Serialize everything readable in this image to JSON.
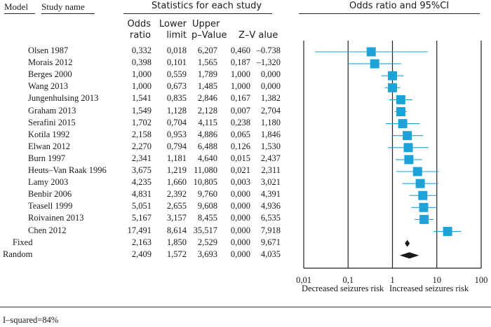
{
  "headers": {
    "model": "Model",
    "study_name": "Study name",
    "stats": "Statistics for each study",
    "plot": "Odds ratio and 95%CI",
    "col_or_1": "Odds",
    "col_or_2": "ratio",
    "col_low_1": "Lower",
    "col_low_2": "limit",
    "col_up_1": "Upper",
    "col_p_2": "p–Value",
    "col_z_2": "Z–V alue"
  },
  "footer": {
    "decreased": "Decreased seizures risk",
    "increased": "Increased seizures risk",
    "isq": "I–squared=84%"
  },
  "chart_data": {
    "type": "forest",
    "x_scale": "log",
    "xlim": [
      0.01,
      100
    ],
    "x_ticks": [
      "0,01",
      "0,1",
      "1",
      "10",
      "100"
    ],
    "x_tick_values": [
      0.01,
      0.1,
      1,
      10,
      100
    ],
    "rows": [
      {
        "name": "Olsen 1987",
        "or": "0,332",
        "lower": "0,018",
        "upper": "6,207",
        "p": "0,460",
        "z": "–0.738",
        "or_v": 0.332,
        "lo_v": 0.018,
        "up_v": 6.207
      },
      {
        "name": "Morais 2012",
        "or": "0,398",
        "lower": "0,101",
        "upper": "1,565",
        "p": "0,187",
        "z": "–1,320",
        "or_v": 0.398,
        "lo_v": 0.101,
        "up_v": 1.565
      },
      {
        "name": "Berges 2000",
        "or": "1,000",
        "lower": "0,559",
        "upper": "1,789",
        "p": "1,000",
        "z": "0,000",
        "or_v": 1.0,
        "lo_v": 0.559,
        "up_v": 1.789
      },
      {
        "name": "Wang 2013",
        "or": "1,000",
        "lower": "0,673",
        "upper": "1,485",
        "p": "1,000",
        "z": "0,000",
        "or_v": 1.0,
        "lo_v": 0.673,
        "up_v": 1.485
      },
      {
        "name": "Jungenhulsing 2013",
        "or": "1,541",
        "lower": "0,835",
        "upper": "2,846",
        "p": "0,167",
        "z": "1,382",
        "or_v": 1.541,
        "lo_v": 0.835,
        "up_v": 2.846
      },
      {
        "name": "Graham 2013",
        "or": "1,549",
        "lower": "1,128",
        "upper": "2,128",
        "p": "0,007",
        "z": "2,704",
        "or_v": 1.549,
        "lo_v": 1.128,
        "up_v": 2.128
      },
      {
        "name": "Serafini 2015",
        "or": "1,702",
        "lower": "0,704",
        "upper": "4,115",
        "p": "0,238",
        "z": "1,180",
        "or_v": 1.702,
        "lo_v": 0.704,
        "up_v": 4.115
      },
      {
        "name": "Kotila 1992",
        "or": "2,158",
        "lower": "0,953",
        "upper": "4,886",
        "p": "0,065",
        "z": "1,846",
        "or_v": 2.158,
        "lo_v": 0.953,
        "up_v": 4.886
      },
      {
        "name": "Elwan 2012",
        "or": "2,270",
        "lower": "0,794",
        "upper": "6,488",
        "p": "0,126",
        "z": "1,530",
        "or_v": 2.27,
        "lo_v": 0.794,
        "up_v": 6.488
      },
      {
        "name": "Burn 1997",
        "or": "2,341",
        "lower": "1,181",
        "upper": "4,640",
        "p": "0,015",
        "z": "2,437",
        "or_v": 2.341,
        "lo_v": 1.181,
        "up_v": 4.64
      },
      {
        "name": "Heuts–Van Raak 1996",
        "or": "3,675",
        "lower": "1,219",
        "upper": "11,080",
        "p": "0,021",
        "z": "2,311",
        "or_v": 3.675,
        "lo_v": 1.219,
        "up_v": 11.08
      },
      {
        "name": "Lamy 2003",
        "or": "4,235",
        "lower": "1,660",
        "upper": "10,805",
        "p": "0,003",
        "z": "3,021",
        "or_v": 4.235,
        "lo_v": 1.66,
        "up_v": 10.805
      },
      {
        "name": "Benbir 2006",
        "or": "4,831",
        "lower": "2,392",
        "upper": "9,760",
        "p": "0,000",
        "z": "4,391",
        "or_v": 4.831,
        "lo_v": 2.392,
        "up_v": 9.76
      },
      {
        "name": "Teasell 1999",
        "or": "5,051",
        "lower": "2,655",
        "upper": "9,608",
        "p": "0,000",
        "z": "4,936",
        "or_v": 5.051,
        "lo_v": 2.655,
        "up_v": 9.608
      },
      {
        "name": "Roivainen 2013",
        "or": "5,167",
        "lower": "3,157",
        "upper": "8,455",
        "p": "0,000",
        "z": "6,535",
        "or_v": 5.167,
        "lo_v": 3.157,
        "up_v": 8.455
      },
      {
        "name": "Chen 2012",
        "or": "17,491",
        "lower": "8,614",
        "upper": "35,517",
        "p": "0,000",
        "z": "7,918",
        "or_v": 17.491,
        "lo_v": 8.614,
        "up_v": 35.517
      }
    ],
    "summary": [
      {
        "name": "Fixed",
        "or": "2,163",
        "lower": "1,850",
        "upper": "2,529",
        "p": "0,000",
        "z": "9,671",
        "or_v": 2.163,
        "lo_v": 1.85,
        "up_v": 2.529
      },
      {
        "name": "Random",
        "or": "2,409",
        "lower": "1,572",
        "upper": "3,693",
        "p": "0,000",
        "z": "4,035",
        "or_v": 2.409,
        "lo_v": 1.572,
        "up_v": 3.693
      }
    ],
    "colors": {
      "marker": "#1ea3d8",
      "summary_fixed": "#1a1a1a",
      "summary_random": "#1a1a1a",
      "axis": "#222222"
    }
  }
}
